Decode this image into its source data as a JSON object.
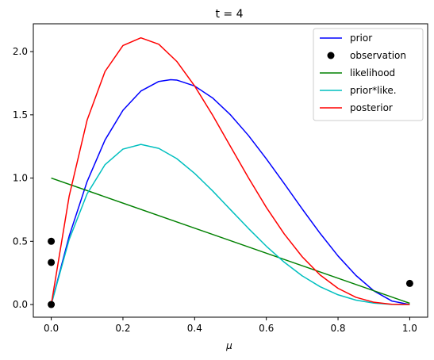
{
  "chart_data": {
    "type": "line",
    "title": "t = 4",
    "xlabel": "μ",
    "ylabel": "",
    "xlim": [
      -0.05,
      1.05
    ],
    "ylim": [
      -0.1,
      2.22
    ],
    "xticks": [
      0.0,
      0.2,
      0.4,
      0.6,
      0.8,
      1.0
    ],
    "xtick_labels": [
      "0.0",
      "0.2",
      "0.4",
      "0.6",
      "0.8",
      "1.0"
    ],
    "yticks": [
      0.0,
      0.5,
      1.0,
      1.5,
      2.0
    ],
    "ytick_labels": [
      "0.0",
      "0.5",
      "1.0",
      "1.5",
      "2.0"
    ],
    "grid": false,
    "legend_position": "top-right",
    "series": [
      {
        "name": "prior",
        "kind": "line",
        "color": "#0000ff",
        "x": [
          0.0,
          0.05,
          0.1,
          0.15,
          0.2,
          0.25,
          0.3,
          0.333,
          0.35,
          0.4,
          0.45,
          0.5,
          0.55,
          0.6,
          0.65,
          0.7,
          0.75,
          0.8,
          0.85,
          0.9,
          0.95,
          1.0
        ],
        "y": [
          0.0,
          0.541,
          0.972,
          1.301,
          1.536,
          1.688,
          1.764,
          1.778,
          1.775,
          1.728,
          1.634,
          1.5,
          1.337,
          1.152,
          0.956,
          0.756,
          0.563,
          0.384,
          0.23,
          0.108,
          0.028,
          0.0
        ]
      },
      {
        "name": "observation",
        "kind": "scatter",
        "color": "#000000",
        "x": [
          0.0,
          0.0,
          0.0,
          1.0
        ],
        "y": [
          0.0,
          0.333,
          0.5,
          0.167
        ]
      },
      {
        "name": "likelihood",
        "kind": "line",
        "color": "#008000",
        "x": [
          0.0,
          1.0
        ],
        "y": [
          1.0,
          0.01
        ]
      },
      {
        "name": "prior*like.",
        "kind": "line",
        "color": "#00bfbf",
        "x": [
          0.0,
          0.05,
          0.1,
          0.15,
          0.2,
          0.25,
          0.3,
          0.35,
          0.4,
          0.45,
          0.5,
          0.55,
          0.6,
          0.65,
          0.7,
          0.75,
          0.8,
          0.85,
          0.9,
          0.95,
          1.0
        ],
        "y": [
          0.0,
          0.514,
          0.875,
          1.106,
          1.229,
          1.266,
          1.235,
          1.154,
          1.037,
          0.899,
          0.75,
          0.602,
          0.461,
          0.335,
          0.227,
          0.141,
          0.077,
          0.035,
          0.011,
          0.001,
          0.0
        ]
      },
      {
        "name": "posterior",
        "kind": "line",
        "color": "#ff0000",
        "x": [
          0.0,
          0.05,
          0.1,
          0.15,
          0.2,
          0.25,
          0.3,
          0.35,
          0.4,
          0.45,
          0.5,
          0.55,
          0.6,
          0.65,
          0.7,
          0.75,
          0.8,
          0.85,
          0.9,
          0.95,
          1.0
        ],
        "y": [
          0.0,
          0.857,
          1.458,
          1.843,
          2.048,
          2.109,
          2.058,
          1.923,
          1.728,
          1.498,
          1.25,
          1.003,
          0.768,
          0.558,
          0.378,
          0.234,
          0.128,
          0.057,
          0.018,
          0.002,
          0.0
        ]
      }
    ]
  }
}
